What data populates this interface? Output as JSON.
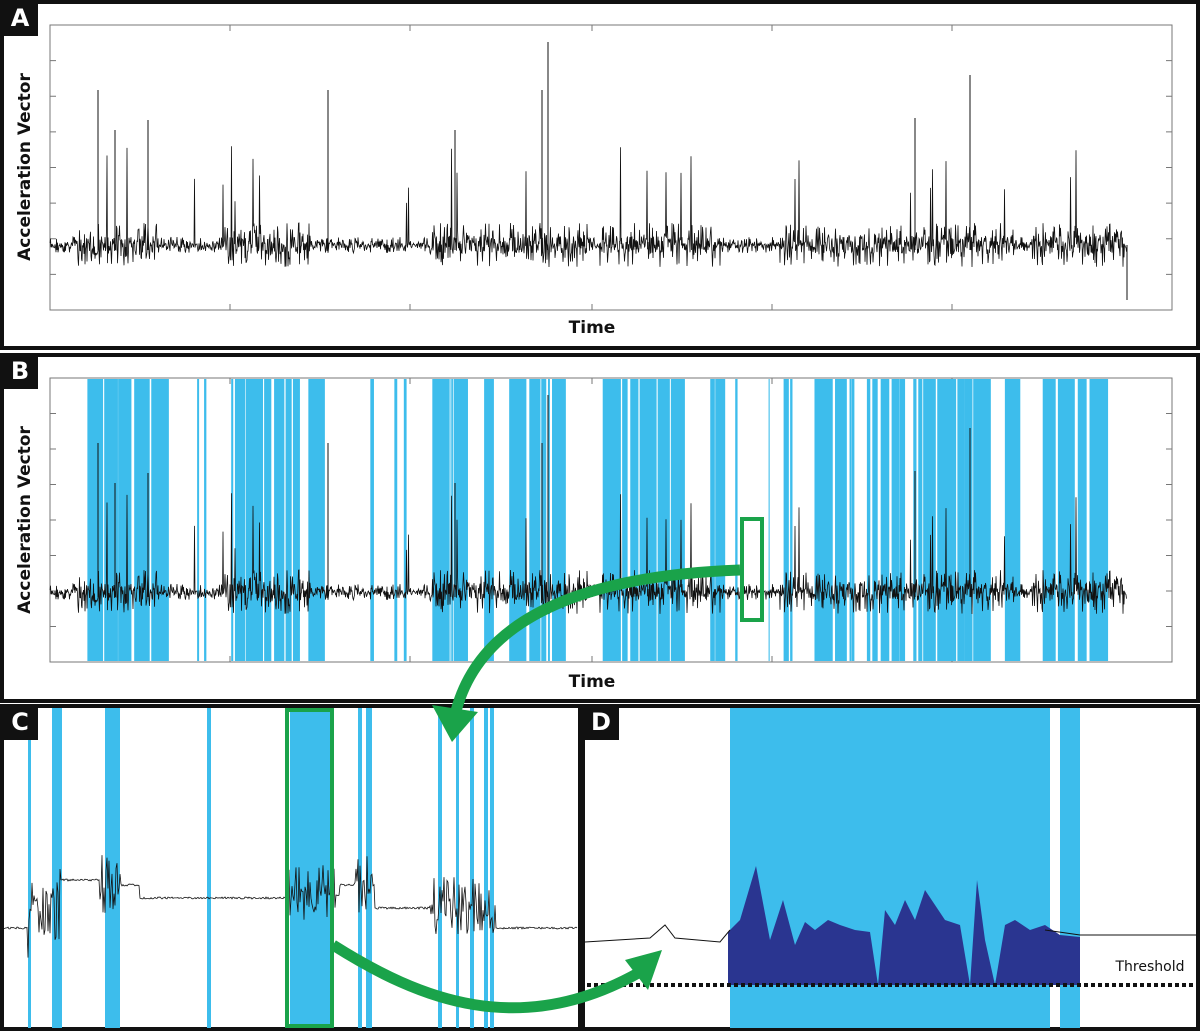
{
  "panels": [
    {
      "label": "A",
      "y_axis_label": "Acceleration Vector",
      "x_axis_label": "Time"
    },
    {
      "label": "B",
      "y_axis_label": "Acceleration Vector",
      "x_axis_label": "Time"
    },
    {
      "label": "C"
    },
    {
      "label": "D",
      "threshold_label": "Threshold"
    }
  ]
}
